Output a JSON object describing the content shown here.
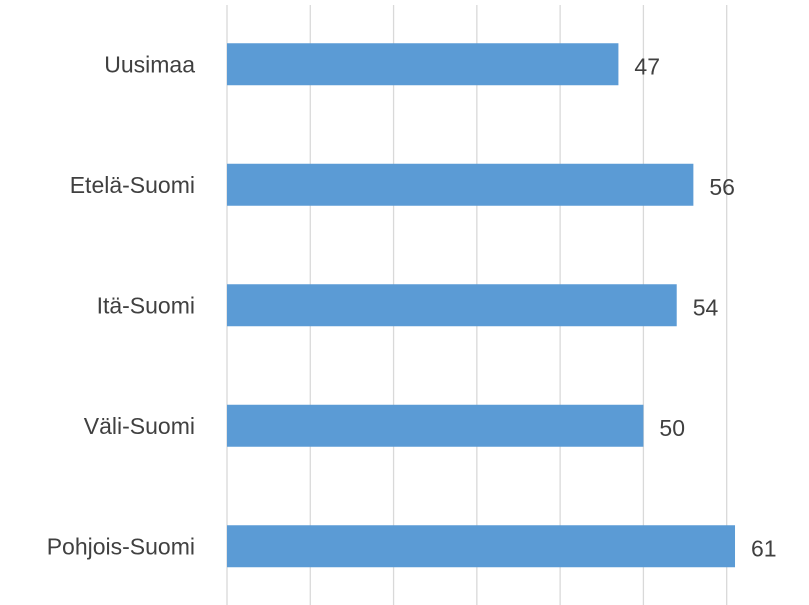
{
  "chart_data": {
    "type": "bar",
    "orientation": "horizontal",
    "categories": [
      "Uusimaa",
      "Etelä-Suomi",
      "Itä-Suomi",
      "Väli-Suomi",
      "Pohjois-Suomi"
    ],
    "values": [
      47,
      56,
      54,
      50,
      61
    ],
    "color": "#5b9bd5",
    "xlim": [
      0,
      64
    ],
    "xticks": [
      0,
      10,
      20,
      30,
      40,
      50,
      60
    ],
    "grid": true
  }
}
